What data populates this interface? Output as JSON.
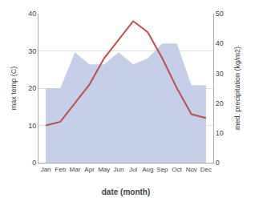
{
  "chart_data": {
    "type": "line",
    "categories": [
      "Jan",
      "Feb",
      "Mar",
      "Apr",
      "May",
      "Jun",
      "Jul",
      "Aug",
      "Sep",
      "Oct",
      "Nov",
      "Dec"
    ],
    "xlabel": "date (month)",
    "ylabel": "max temp (C)",
    "y2label": "med. precipitation (kg/m2)",
    "series": [
      {
        "type": "area",
        "axis": "y2",
        "color": "#c5cfe8",
        "values": [
          25,
          25,
          37,
          33,
          33,
          37,
          33,
          35,
          40,
          40,
          26,
          26
        ]
      },
      {
        "type": "line",
        "color": "#c0504d",
        "values": [
          10,
          11,
          16,
          21,
          28,
          33,
          38,
          35,
          28,
          20,
          13,
          12
        ]
      }
    ],
    "ylim": [
      0,
      40
    ],
    "yticks": [
      0,
      10,
      20,
      30,
      40
    ],
    "y2lim": [
      0,
      50
    ],
    "y2ticks": [
      0,
      10,
      20,
      30,
      40,
      50
    ],
    "grid": true
  }
}
